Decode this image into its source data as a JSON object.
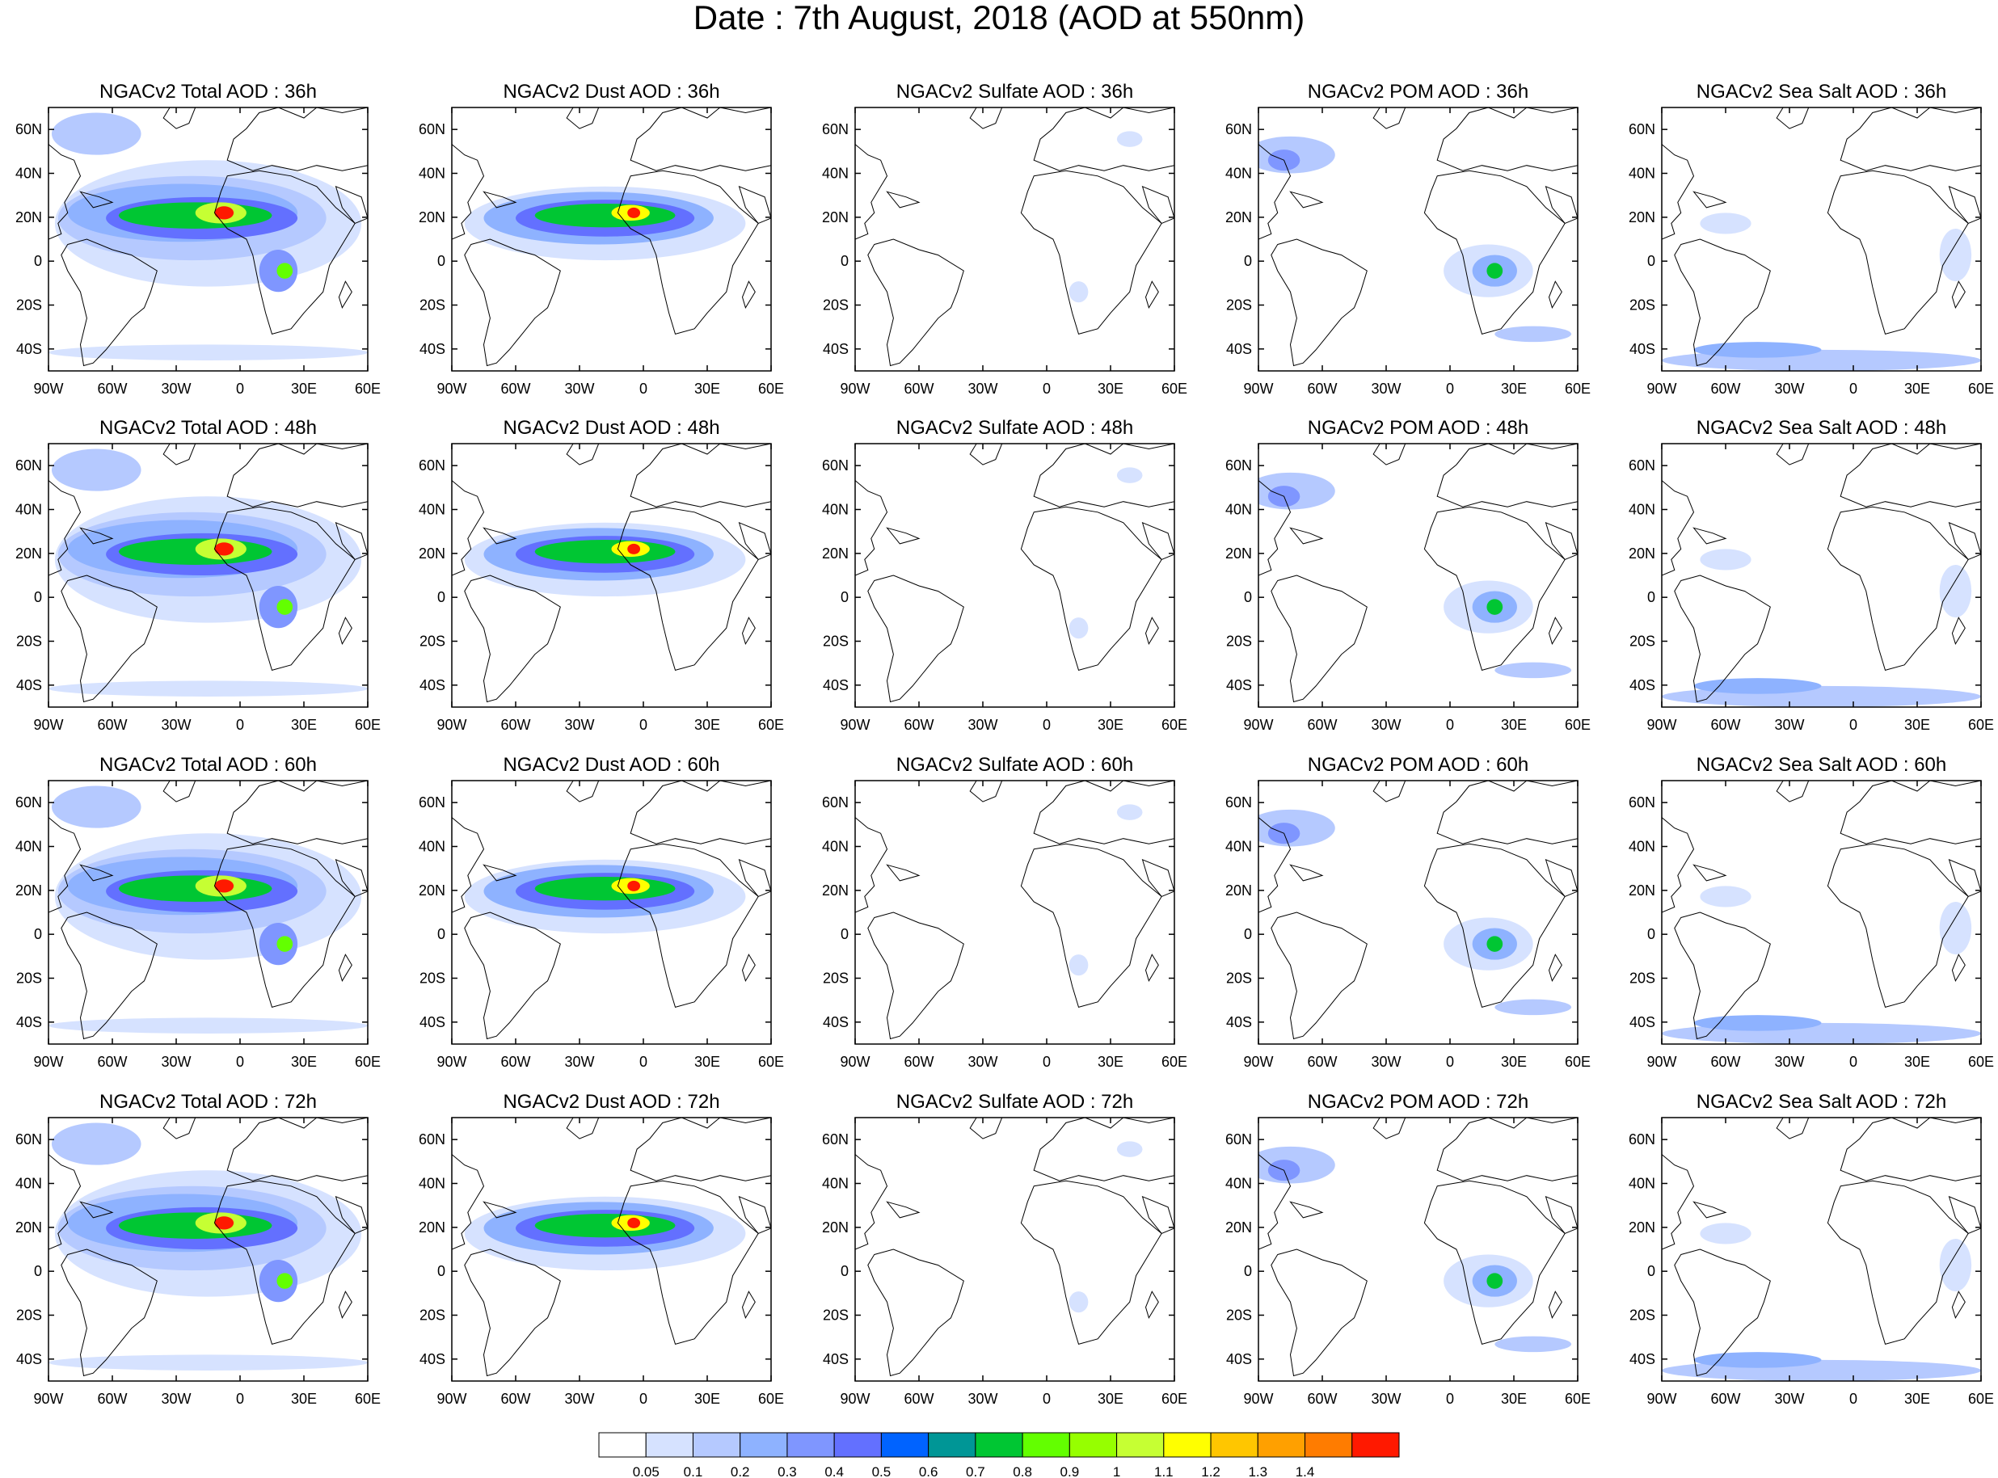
{
  "title": "Date : 7th August, 2018 (AOD at 550nm)",
  "panels": [
    [
      "NGACv2 Total AOD : 36h",
      "NGACv2 Dust AOD : 36h",
      "NGACv2 Sulfate AOD : 36h",
      "NGACv2 POM AOD : 36h",
      "NGACv2 Sea Salt AOD : 36h"
    ],
    [
      "NGACv2 Total AOD : 48h",
      "NGACv2 Dust AOD : 48h",
      "NGACv2 Sulfate AOD : 48h",
      "NGACv2 POM AOD : 48h",
      "NGACv2 Sea Salt AOD : 48h"
    ],
    [
      "NGACv2 Total AOD : 60h",
      "NGACv2 Dust AOD : 60h",
      "NGACv2 Sulfate AOD : 60h",
      "NGACv2 POM AOD : 60h",
      "NGACv2 Sea Salt AOD : 60h"
    ],
    [
      "NGACv2 Total AOD : 72h",
      "NGACv2 Dust AOD : 72h",
      "NGACv2 Sulfate AOD : 72h",
      "NGACv2 POM AOD : 72h",
      "NGACv2 Sea Salt  AOD : 72h"
    ]
  ],
  "lon_ticks": [
    "90W",
    "60W",
    "30W",
    "0",
    "30E",
    "60E"
  ],
  "lat_ticks": [
    "60N",
    "40N",
    "20N",
    "0",
    "20S",
    "40S"
  ],
  "colorbar": {
    "labels": [
      "0.05",
      "0.1",
      "0.2",
      "0.3",
      "0.4",
      "0.5",
      "0.6",
      "0.7",
      "0.8",
      "0.9",
      "1",
      "1.1",
      "1.2",
      "1.3",
      "1.4"
    ],
    "colors": [
      "#ffffff",
      "#d6e2ff",
      "#b5c9ff",
      "#8eb2ff",
      "#7f96ff",
      "#6370ff",
      "#0063ff",
      "#009696",
      "#00c633",
      "#63ff00",
      "#96ff00",
      "#c6ff33",
      "#ffff00",
      "#ffc600",
      "#ffa000",
      "#ff7c00",
      "#ff1900"
    ]
  }
}
